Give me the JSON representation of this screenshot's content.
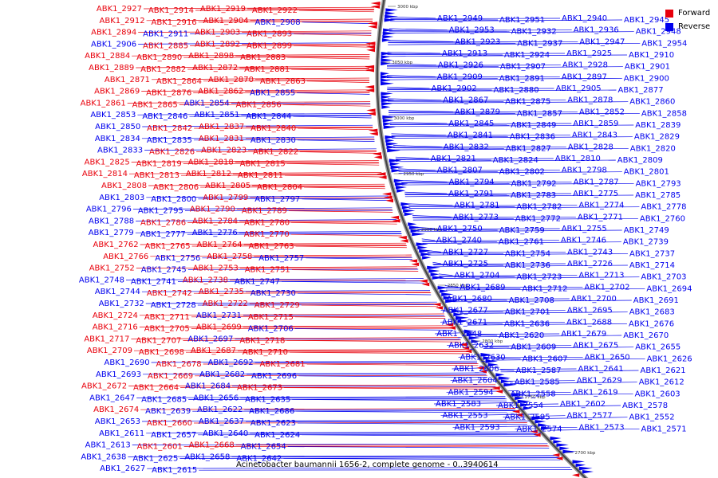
{
  "caption": "Acinetobacter baumannii 1656-2, complete genome - 0..3940614",
  "legend": [
    {
      "label": "Forward",
      "color": "#e8000b"
    },
    {
      "label": "Reverse",
      "color": "#0000ee"
    }
  ],
  "colors": {
    "forward": "#e8000b",
    "reverse": "#0000ee",
    "backbone": "#555555"
  },
  "ticks": [
    "3000 kbp",
    "3050 kbp",
    "3000 kbp",
    "2950 kbp",
    "2900 kbp",
    "2850 kbp",
    "2800 kbp",
    "2750 kbp",
    "2700 kbp"
  ],
  "left_labels": [
    {
      "text": "ABK1_2927",
      "strand": "forward"
    },
    {
      "text": "ABK1_2914",
      "strand": "forward"
    },
    {
      "text": "ABK1_2919",
      "strand": "forward"
    },
    {
      "text": "ABK1_2922",
      "strand": "forward"
    },
    {
      "text": "ABK1_2912",
      "strand": "forward"
    },
    {
      "text": "ABK1_2916",
      "strand": "forward"
    },
    {
      "text": "ABK1_2904",
      "strand": "forward"
    },
    {
      "text": "ABK1_2908",
      "strand": "reverse"
    },
    {
      "text": "ABK1_2894",
      "strand": "forward"
    },
    {
      "text": "ABK1_2911",
      "strand": "reverse"
    },
    {
      "text": "ABK1_2903",
      "strand": "forward"
    },
    {
      "text": "ABK1_2893",
      "strand": "forward"
    },
    {
      "text": "ABK1_2906",
      "strand": "reverse"
    },
    {
      "text": "ABK1_2885",
      "strand": "forward"
    },
    {
      "text": "ABK1_2892",
      "strand": "forward"
    },
    {
      "text": "ABK1_2899",
      "strand": "forward"
    },
    {
      "text": "ABK1_2884",
      "strand": "forward"
    },
    {
      "text": "ABK1_2890",
      "strand": "forward"
    },
    {
      "text": "ABK1_2898",
      "strand": "forward"
    },
    {
      "text": "ABK1_2883",
      "strand": "forward"
    },
    {
      "text": "ABK1_2889",
      "strand": "forward"
    },
    {
      "text": "ABK1_2882",
      "strand": "forward"
    },
    {
      "text": "ABK1_2872",
      "strand": "forward"
    },
    {
      "text": "ABK1_2881",
      "strand": "forward"
    },
    {
      "text": "ABK1_2871",
      "strand": "forward"
    },
    {
      "text": "ABK1_2864",
      "strand": "forward"
    },
    {
      "text": "ABK1_2870",
      "strand": "forward"
    },
    {
      "text": "ABK1_2863",
      "strand": "forward"
    },
    {
      "text": "ABK1_2869",
      "strand": "forward"
    },
    {
      "text": "ABK1_2876",
      "strand": "forward"
    },
    {
      "text": "ABK1_2862",
      "strand": "forward"
    },
    {
      "text": "ABK1_2855",
      "strand": "reverse"
    },
    {
      "text": "ABK1_2861",
      "strand": "forward"
    },
    {
      "text": "ABK1_2865",
      "strand": "forward"
    },
    {
      "text": "ABK1_2854",
      "strand": "reverse"
    },
    {
      "text": "ABK1_2856",
      "strand": "forward"
    },
    {
      "text": "ABK1_2853",
      "strand": "reverse"
    },
    {
      "text": "ABK1_2846",
      "strand": "reverse"
    },
    {
      "text": "ABK1_2851",
      "strand": "reverse"
    },
    {
      "text": "ABK1_2844",
      "strand": "reverse"
    },
    {
      "text": "ABK1_2850",
      "strand": "reverse"
    },
    {
      "text": "ABK1_2842",
      "strand": "forward"
    },
    {
      "text": "ABK1_2837",
      "strand": "forward"
    },
    {
      "text": "ABK1_2840",
      "strand": "forward"
    },
    {
      "text": "ABK1_2834",
      "strand": "reverse"
    },
    {
      "text": "ABK1_2835",
      "strand": "reverse"
    },
    {
      "text": "ABK1_2831",
      "strand": "forward"
    },
    {
      "text": "ABK1_2830",
      "strand": "reverse"
    },
    {
      "text": "ABK1_2833",
      "strand": "reverse"
    },
    {
      "text": "ABK1_2826",
      "strand": "forward"
    },
    {
      "text": "ABK1_2823",
      "strand": "forward"
    },
    {
      "text": "ABK1_2822",
      "strand": "forward"
    },
    {
      "text": "ABK1_2825",
      "strand": "forward"
    },
    {
      "text": "ABK1_2819",
      "strand": "forward"
    },
    {
      "text": "ABK1_2818",
      "strand": "forward"
    },
    {
      "text": "ABK1_2815",
      "strand": "forward"
    },
    {
      "text": "ABK1_2814",
      "strand": "forward"
    },
    {
      "text": "ABK1_2813",
      "strand": "forward"
    },
    {
      "text": "ABK1_2812",
      "strand": "forward"
    },
    {
      "text": "ABK1_2811",
      "strand": "forward"
    },
    {
      "text": "ABK1_2808",
      "strand": "forward"
    },
    {
      "text": "ABK1_2806",
      "strand": "forward"
    },
    {
      "text": "ABK1_2805",
      "strand": "forward"
    },
    {
      "text": "ABK1_2804",
      "strand": "forward"
    },
    {
      "text": "ABK1_2803",
      "strand": "reverse"
    },
    {
      "text": "ABK1_2800",
      "strand": "reverse"
    },
    {
      "text": "ABK1_2799",
      "strand": "forward"
    },
    {
      "text": "ABK1_2797",
      "strand": "reverse"
    },
    {
      "text": "ABK1_2796",
      "strand": "reverse"
    },
    {
      "text": "ABK1_2795",
      "strand": "reverse"
    },
    {
      "text": "ABK1_2790",
      "strand": "forward"
    },
    {
      "text": "ABK1_2789",
      "strand": "forward"
    },
    {
      "text": "ABK1_2788",
      "strand": "reverse"
    },
    {
      "text": "ABK1_2786",
      "strand": "forward"
    },
    {
      "text": "ABK1_2784",
      "strand": "forward"
    },
    {
      "text": "ABK1_2780",
      "strand": "forward"
    },
    {
      "text": "ABK1_2779",
      "strand": "reverse"
    },
    {
      "text": "ABK1_2777",
      "strand": "reverse"
    },
    {
      "text": "ABK1_2776",
      "strand": "reverse"
    },
    {
      "text": "ABK1_2770",
      "strand": "forward"
    },
    {
      "text": "ABK1_2762",
      "strand": "forward"
    },
    {
      "text": "ABK1_2765",
      "strand": "forward"
    },
    {
      "text": "ABK1_2764",
      "strand": "forward"
    },
    {
      "text": "ABK1_2763",
      "strand": "forward"
    },
    {
      "text": "ABK1_2766",
      "strand": "forward"
    },
    {
      "text": "ABK1_2756",
      "strand": "reverse"
    },
    {
      "text": "ABK1_2758",
      "strand": "forward"
    },
    {
      "text": "ABK1_2757",
      "strand": "reverse"
    },
    {
      "text": "ABK1_2752",
      "strand": "forward"
    },
    {
      "text": "ABK1_2745",
      "strand": "reverse"
    },
    {
      "text": "ABK1_2753",
      "strand": "forward"
    },
    {
      "text": "ABK1_2751",
      "strand": "forward"
    },
    {
      "text": "ABK1_2748",
      "strand": "reverse"
    },
    {
      "text": "ABK1_2741",
      "strand": "reverse"
    },
    {
      "text": "ABK1_2738",
      "strand": "forward"
    },
    {
      "text": "ABK1_2747",
      "strand": "reverse"
    },
    {
      "text": "ABK1_2744",
      "strand": "reverse"
    },
    {
      "text": "ABK1_2742",
      "strand": "forward"
    },
    {
      "text": "ABK1_2735",
      "strand": "forward"
    },
    {
      "text": "ABK1_2730",
      "strand": "reverse"
    },
    {
      "text": "ABK1_2732",
      "strand": "reverse"
    },
    {
      "text": "ABK1_2728",
      "strand": "reverse"
    },
    {
      "text": "ABK1_2722",
      "strand": "forward"
    },
    {
      "text": "ABK1_2729",
      "strand": "forward"
    },
    {
      "text": "ABK1_2724",
      "strand": "forward"
    },
    {
      "text": "ABK1_2711",
      "strand": "forward"
    },
    {
      "text": "ABK1_2731",
      "strand": "reverse"
    },
    {
      "text": "ABK1_2715",
      "strand": "forward"
    },
    {
      "text": "ABK1_2716",
      "strand": "forward"
    },
    {
      "text": "ABK1_2705",
      "strand": "forward"
    },
    {
      "text": "ABK1_2699",
      "strand": "forward"
    },
    {
      "text": "ABK1_2706",
      "strand": "reverse"
    },
    {
      "text": "ABK1_2717",
      "strand": "forward"
    },
    {
      "text": "ABK1_2707",
      "strand": "forward"
    },
    {
      "text": "ABK1_2697",
      "strand": "reverse"
    },
    {
      "text": "ABK1_2718",
      "strand": "forward"
    },
    {
      "text": "ABK1_2709",
      "strand": "forward"
    },
    {
      "text": "ABK1_2698",
      "strand": "forward"
    },
    {
      "text": "ABK1_2687",
      "strand": "forward"
    },
    {
      "text": "ABK1_2710",
      "strand": "forward"
    },
    {
      "text": "ABK1_2690",
      "strand": "reverse"
    },
    {
      "text": "ABK1_2678",
      "strand": "forward"
    },
    {
      "text": "ABK1_2692",
      "strand": "reverse"
    },
    {
      "text": "ABK1_2681",
      "strand": "forward"
    },
    {
      "text": "ABK1_2693",
      "strand": "reverse"
    },
    {
      "text": "ABK1_2669",
      "strand": "forward"
    },
    {
      "text": "ABK1_2682",
      "strand": "reverse"
    },
    {
      "text": "ABK1_2696",
      "strand": "reverse"
    },
    {
      "text": "ABK1_2672",
      "strand": "forward"
    },
    {
      "text": "ABK1_2664",
      "strand": "forward"
    },
    {
      "text": "ABK1_2684",
      "strand": "reverse"
    },
    {
      "text": "ABK1_2673",
      "strand": "forward"
    },
    {
      "text": "ABK1_2647",
      "strand": "reverse"
    },
    {
      "text": "ABK1_2685",
      "strand": "reverse"
    },
    {
      "text": "ABK1_2656",
      "strand": "reverse"
    },
    {
      "text": "ABK1_2635",
      "strand": "reverse"
    },
    {
      "text": "ABK1_2674",
      "strand": "forward"
    },
    {
      "text": "ABK1_2639",
      "strand": "reverse"
    },
    {
      "text": "ABK1_2622",
      "strand": "reverse"
    },
    {
      "text": "ABK1_2686",
      "strand": "reverse"
    },
    {
      "text": "ABK1_2653",
      "strand": "reverse"
    },
    {
      "text": "ABK1_2660",
      "strand": "forward"
    },
    {
      "text": "ABK1_2637",
      "strand": "reverse"
    },
    {
      "text": "ABK1_2623",
      "strand": "reverse"
    },
    {
      "text": "ABK1_2611",
      "strand": "reverse"
    },
    {
      "text": "ABK1_2657",
      "strand": "reverse"
    },
    {
      "text": "ABK1_2640",
      "strand": "reverse"
    },
    {
      "text": "ABK1_2624",
      "strand": "reverse"
    },
    {
      "text": "ABK1_2613",
      "strand": "reverse"
    },
    {
      "text": "ABK1_2601",
      "strand": "forward"
    },
    {
      "text": "ABK1_2668",
      "strand": "forward"
    },
    {
      "text": "ABK1_2654",
      "strand": "reverse"
    },
    {
      "text": "ABK1_2638",
      "strand": "reverse"
    },
    {
      "text": "ABK1_2625",
      "strand": "reverse"
    },
    {
      "text": "ABK1_2658",
      "strand": "reverse"
    },
    {
      "text": "ABK1_2642",
      "strand": "reverse"
    },
    {
      "text": "ABK1_2627",
      "strand": "reverse"
    },
    {
      "text": "ABK1_2615",
      "strand": "reverse"
    }
  ],
  "right_labels": [
    {
      "text": "ABK1_2949"
    },
    {
      "text": "ABK1_2951"
    },
    {
      "text": "ABK1_2940"
    },
    {
      "text": "ABK1_2945"
    },
    {
      "text": "ABK1_2953"
    },
    {
      "text": "ABK1_2932"
    },
    {
      "text": "ABK1_2936"
    },
    {
      "text": "ABK1_2948"
    },
    {
      "text": "ABK1_2923"
    },
    {
      "text": "ABK1_2937"
    },
    {
      "text": "ABK1_2947"
    },
    {
      "text": "ABK1_2954"
    },
    {
      "text": "ABK1_2913"
    },
    {
      "text": "ABK1_2924"
    },
    {
      "text": "ABK1_2925"
    },
    {
      "text": "ABK1_2910"
    },
    {
      "text": "ABK1_2926"
    },
    {
      "text": "ABK1_2907"
    },
    {
      "text": "ABK1_2928"
    },
    {
      "text": "ABK1_2901"
    },
    {
      "text": "ABK1_2909"
    },
    {
      "text": "ABK1_2891"
    },
    {
      "text": "ABK1_2897"
    },
    {
      "text": "ABK1_2900"
    },
    {
      "text": "ABK1_2902"
    },
    {
      "text": "ABK1_2880"
    },
    {
      "text": "ABK1_2905"
    },
    {
      "text": "ABK1_2877"
    },
    {
      "text": "ABK1_2867"
    },
    {
      "text": "ABK1_2875"
    },
    {
      "text": "ABK1_2878"
    },
    {
      "text": "ABK1_2860"
    },
    {
      "text": "ABK1_2879"
    },
    {
      "text": "ABK1_2857"
    },
    {
      "text": "ABK1_2852"
    },
    {
      "text": "ABK1_2858"
    },
    {
      "text": "ABK1_2845"
    },
    {
      "text": "ABK1_2849"
    },
    {
      "text": "ABK1_2859"
    },
    {
      "text": "ABK1_2839"
    },
    {
      "text": "ABK1_2841"
    },
    {
      "text": "ABK1_2836"
    },
    {
      "text": "ABK1_2843"
    },
    {
      "text": "ABK1_2829"
    },
    {
      "text": "ABK1_2832"
    },
    {
      "text": "ABK1_2827"
    },
    {
      "text": "ABK1_2828"
    },
    {
      "text": "ABK1_2820"
    },
    {
      "text": "ABK1_2821"
    },
    {
      "text": "ABK1_2824"
    },
    {
      "text": "ABK1_2810"
    },
    {
      "text": "ABK1_2809"
    },
    {
      "text": "ABK1_2807"
    },
    {
      "text": "ABK1_2802"
    },
    {
      "text": "ABK1_2798"
    },
    {
      "text": "ABK1_2801"
    },
    {
      "text": "ABK1_2794"
    },
    {
      "text": "ABK1_2792"
    },
    {
      "text": "ABK1_2787"
    },
    {
      "text": "ABK1_2793"
    },
    {
      "text": "ABK1_2791"
    },
    {
      "text": "ABK1_2783"
    },
    {
      "text": "ABK1_2775"
    },
    {
      "text": "ABK1_2785"
    },
    {
      "text": "ABK1_2781"
    },
    {
      "text": "ABK1_2782"
    },
    {
      "text": "ABK1_2774"
    },
    {
      "text": "ABK1_2778"
    },
    {
      "text": "ABK1_2773"
    },
    {
      "text": "ABK1_2772"
    },
    {
      "text": "ABK1_2771"
    },
    {
      "text": "ABK1_2760"
    },
    {
      "text": "ABK1_2750"
    },
    {
      "text": "ABK1_2759"
    },
    {
      "text": "ABK1_2755"
    },
    {
      "text": "ABK1_2749"
    },
    {
      "text": "ABK1_2740"
    },
    {
      "text": "ABK1_2761"
    },
    {
      "text": "ABK1_2746"
    },
    {
      "text": "ABK1_2739"
    },
    {
      "text": "ABK1_2727"
    },
    {
      "text": "ABK1_2754"
    },
    {
      "text": "ABK1_2743"
    },
    {
      "text": "ABK1_2737"
    },
    {
      "text": "ABK1_2725"
    },
    {
      "text": "ABK1_2736"
    },
    {
      "text": "ABK1_2726"
    },
    {
      "text": "ABK1_2714"
    },
    {
      "text": "ABK1_2704"
    },
    {
      "text": "ABK1_2723"
    },
    {
      "text": "ABK1_2713"
    },
    {
      "text": "ABK1_2703"
    },
    {
      "text": "ABK1_2689"
    },
    {
      "text": "ABK1_2712"
    },
    {
      "text": "ABK1_2702"
    },
    {
      "text": "ABK1_2694"
    },
    {
      "text": "ABK1_2680"
    },
    {
      "text": "ABK1_2708"
    },
    {
      "text": "ABK1_2700"
    },
    {
      "text": "ABK1_2691"
    },
    {
      "text": "ABK1_2677"
    },
    {
      "text": "ABK1_2701"
    },
    {
      "text": "ABK1_2695"
    },
    {
      "text": "ABK1_2683"
    },
    {
      "text": "ABK1_2671"
    },
    {
      "text": "ABK1_2636"
    },
    {
      "text": "ABK1_2688"
    },
    {
      "text": "ABK1_2676"
    },
    {
      "text": "ABK1_2648"
    },
    {
      "text": "ABK1_2620"
    },
    {
      "text": "ABK1_2679"
    },
    {
      "text": "ABK1_2670"
    },
    {
      "text": "ABK1_2632"
    },
    {
      "text": "ABK1_2609"
    },
    {
      "text": "ABK1_2675"
    },
    {
      "text": "ABK1_2655"
    },
    {
      "text": "ABK1_2630"
    },
    {
      "text": "ABK1_2607"
    },
    {
      "text": "ABK1_2650"
    },
    {
      "text": "ABK1_2626"
    },
    {
      "text": "ABK1_2606"
    },
    {
      "text": "ABK1_2587"
    },
    {
      "text": "ABK1_2641"
    },
    {
      "text": "ABK1_2621"
    },
    {
      "text": "ABK1_2604"
    },
    {
      "text": "ABK1_2585"
    },
    {
      "text": "ABK1_2629"
    },
    {
      "text": "ABK1_2612"
    },
    {
      "text": "ABK1_2594"
    },
    {
      "text": "ABK1_2558"
    },
    {
      "text": "ABK1_2619"
    },
    {
      "text": "ABK1_2603"
    },
    {
      "text": "ABK1_2583"
    },
    {
      "text": "ABK1_2554"
    },
    {
      "text": "ABK1_2602"
    },
    {
      "text": "ABK1_2578"
    },
    {
      "text": "ABK1_2553"
    },
    {
      "text": "ABK1_2595"
    },
    {
      "text": "ABK1_2577"
    },
    {
      "text": "ABK1_2552"
    },
    {
      "text": "ABK1_2593"
    },
    {
      "text": "ABK1_2574"
    },
    {
      "text": "ABK1_2573"
    },
    {
      "text": "ABK1_2571"
    }
  ]
}
